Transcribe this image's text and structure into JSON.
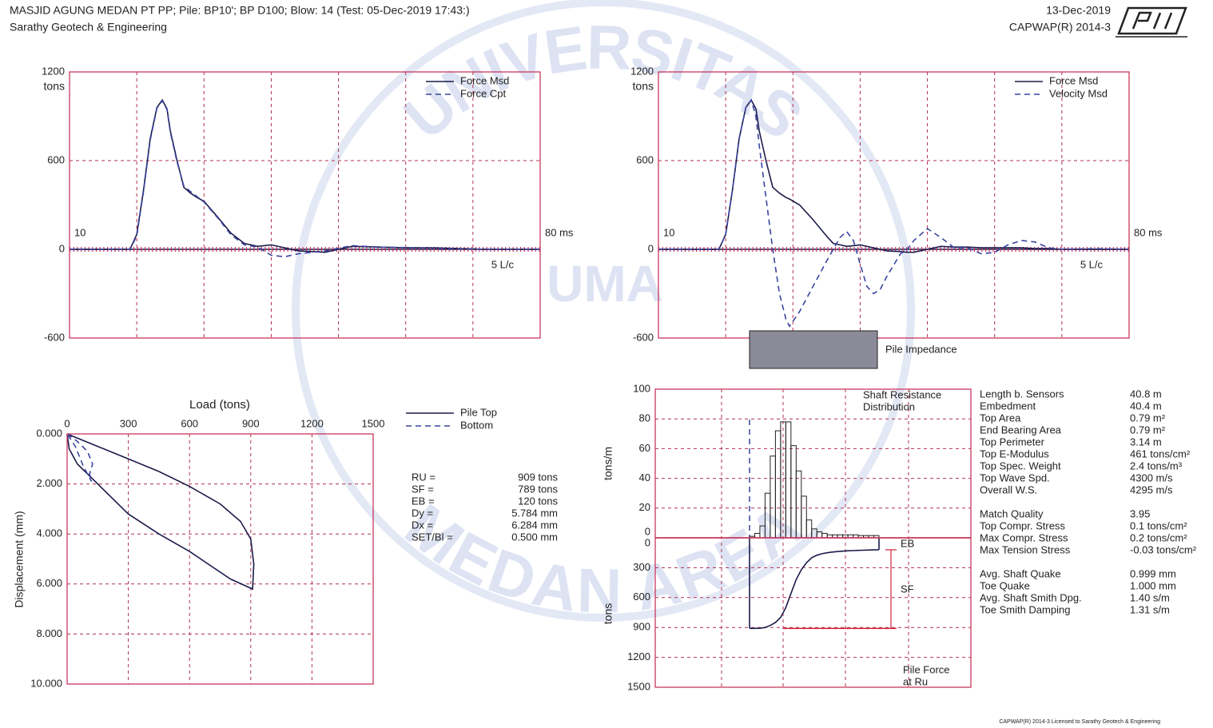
{
  "header": {
    "title": "MASJID AGUNG MEDAN PT PP; Pile: BP10'; BP D100; Blow: 14 (Test: 05-Dec-2019 17:43:)",
    "company": "Sarathy Geotech & Engineering",
    "date": "13-Dec-2019",
    "software": "CAPWAP(R) 2014-3"
  },
  "watermark": {
    "top": "UNIVERSITAS",
    "bottom": "MEDAN AREA",
    "center": "UMA"
  },
  "chart_data": [
    {
      "type": "line",
      "ylabel": "tons",
      "annotation": "5 L/c",
      "legend": "top-right",
      "x": [
        10,
        19,
        20,
        21,
        22,
        23,
        23.8,
        24.5,
        25,
        26,
        27,
        28,
        29,
        30,
        32,
        34,
        36,
        38,
        40,
        42,
        44,
        48,
        52,
        56,
        60,
        64,
        68,
        72,
        80
      ],
      "series": [
        {
          "name": "Force Msd",
          "color": "#1b1b4b",
          "dash": false,
          "values": [
            0,
            0,
            100,
            400,
            750,
            960,
            1010,
            950,
            800,
            600,
            420,
            380,
            350,
            325,
            220,
            110,
            40,
            20,
            30,
            10,
            -10,
            -20,
            20,
            15,
            10,
            10,
            5,
            0,
            0
          ]
        },
        {
          "name": "Force Cpt",
          "color": "#3a44a0",
          "dash": true,
          "values": [
            0,
            0,
            90,
            390,
            740,
            955,
            1005,
            945,
            790,
            590,
            430,
            390,
            355,
            320,
            215,
            100,
            30,
            15,
            -40,
            -50,
            -30,
            -10,
            25,
            15,
            12,
            8,
            3,
            0,
            0
          ]
        }
      ],
      "xlim": [
        10,
        80
      ],
      "xticks": [
        10,
        {
          "value": 80,
          "label": "80 ms"
        }
      ],
      "xgrid": [
        20,
        30,
        40,
        50,
        60,
        70
      ],
      "ylim": [
        -600,
        1200
      ],
      "yticks": [
        -600,
        0,
        600,
        1200
      ],
      "grid": true
    },
    {
      "type": "line",
      "ylabel": "tons",
      "annotation": "5 L/c",
      "legend": "top-right",
      "x": [
        10,
        19,
        20,
        21,
        22,
        23,
        23.8,
        24.5,
        25,
        26,
        27,
        28,
        29,
        29.5,
        31,
        33,
        35,
        36,
        37,
        38,
        39,
        40,
        41,
        42,
        43,
        44,
        46,
        47,
        48,
        50,
        52,
        54,
        56,
        58,
        60,
        62,
        64,
        66,
        68,
        70,
        75,
        80
      ],
      "series": [
        {
          "name": "Force Msd",
          "color": "#1b1b4b",
          "dash": false,
          "values": [
            0,
            0,
            100,
            400,
            750,
            960,
            1010,
            950,
            800,
            600,
            420,
            380,
            350,
            340,
            300,
            200,
            90,
            40,
            30,
            20,
            25,
            30,
            20,
            10,
            0,
            -10,
            -15,
            -20,
            -20,
            0,
            20,
            15,
            15,
            10,
            10,
            10,
            10,
            5,
            5,
            0,
            0,
            0
          ]
        },
        {
          "name": "Velocity Msd",
          "color": "#3a44a0",
          "dash": true,
          "values": [
            0,
            0,
            100,
            400,
            750,
            960,
            1010,
            900,
            700,
            350,
            0,
            -300,
            -480,
            -520,
            -420,
            -250,
            -80,
            0,
            80,
            120,
            60,
            -100,
            -250,
            -300,
            -270,
            -180,
            -30,
            0,
            60,
            140,
            80,
            10,
            10,
            -30,
            -20,
            30,
            60,
            50,
            10,
            0,
            5,
            0
          ]
        }
      ],
      "xlim": [
        10,
        80
      ],
      "xticks": [
        10,
        {
          "value": 80,
          "label": "80 ms"
        }
      ],
      "xgrid": [
        20,
        30,
        40,
        50,
        60,
        70
      ],
      "ylim": [
        -600,
        1200
      ],
      "yticks": [
        -600,
        0,
        600,
        1200
      ],
      "grid": true,
      "annotation_box": "Pile Impedance"
    },
    {
      "type": "line",
      "xlabel": "Load (tons)",
      "ylabel": "Displacement (mm)",
      "legend": "outside-right",
      "y_inverted": true,
      "series": [
        {
          "name": "Pile Top",
          "color": "#1b1b4b",
          "dash": false,
          "x": [
            0,
            150,
            300,
            450,
            600,
            750,
            850,
            900,
            915,
            909,
            800,
            600,
            450,
            300,
            150,
            50,
            10,
            0
          ],
          "values": [
            0,
            0.5,
            1.0,
            1.5,
            2.1,
            2.8,
            3.5,
            4.2,
            5.2,
            6.2,
            5.8,
            4.7,
            4.0,
            3.2,
            2.0,
            1.2,
            0.6,
            0
          ]
        },
        {
          "name": "Bottom",
          "color": "#3a44a0",
          "dash": true,
          "x": [
            0,
            50,
            100,
            125,
            110,
            120,
            80,
            40,
            0
          ],
          "values": [
            0,
            0.3,
            0.7,
            1.2,
            1.6,
            1.9,
            1.3,
            0.5,
            0
          ]
        }
      ],
      "xlim": [
        0,
        1500
      ],
      "xticks": [
        0,
        300,
        600,
        900,
        1200,
        1500
      ],
      "ylim": [
        0,
        10
      ],
      "yticks": [
        {
          "value": 0,
          "label": "0.000"
        },
        {
          "value": 2,
          "label": "2.000"
        },
        {
          "value": 4,
          "label": "4.000"
        },
        {
          "value": 6,
          "label": "6.000"
        },
        {
          "value": 8,
          "label": "8.000"
        },
        {
          "value": 10,
          "label": "10.000"
        }
      ],
      "grid": true
    },
    {
      "type": "bar",
      "ylabel": "tons/m",
      "annotation": [
        "Shaft Resistance",
        "Distribution"
      ],
      "color": "#222222",
      "values": [
        1,
        3,
        8,
        30,
        55,
        72,
        78,
        78,
        62,
        45,
        28,
        12,
        6,
        4,
        3,
        2,
        2,
        2,
        2,
        2,
        2,
        1.5,
        1.5,
        1.5,
        1.5
      ],
      "ylim": [
        0,
        100
      ],
      "yticks": [
        0,
        20,
        40,
        60,
        80,
        100
      ],
      "grid": true
    },
    {
      "type": "line",
      "ylabel": "tons",
      "annotation": [
        "Pile Force",
        "at Ru"
      ],
      "color": "#1b1b4b",
      "y_inverted": true,
      "values": [
        909,
        909,
        908,
        900,
        880,
        850,
        800,
        700,
        560,
        420,
        320,
        250,
        200,
        175,
        160,
        150,
        143,
        138,
        134,
        130,
        128,
        126,
        124,
        123,
        121,
        120
      ],
      "labels": {
        "eb": "EB",
        "sf": "SF"
      },
      "ylim": [
        0,
        1500
      ],
      "yticks": [
        0,
        300,
        600,
        900,
        1200,
        1500
      ],
      "grid": true
    }
  ],
  "results": [
    {
      "label": "RU =",
      "value": "909 tons"
    },
    {
      "label": "SF =",
      "value": "789 tons"
    },
    {
      "label": "EB =",
      "value": "120 tons"
    },
    {
      "label": "Dy =",
      "value": "5.784 mm"
    },
    {
      "label": "Dx =",
      "value": "6.284 mm"
    },
    {
      "label": "SET/Bl =",
      "value": "0.500 mm"
    }
  ],
  "properties": [
    [
      {
        "label": "Length b. Sensors",
        "value": "40.8 m"
      },
      {
        "label": "Embedment",
        "value": "40.4 m"
      },
      {
        "label": "Top Area",
        "value": "0.79 m²"
      },
      {
        "label": "End Bearing Area",
        "value": "0.79 m²"
      },
      {
        "label": "Top Perimeter",
        "value": "3.14 m"
      },
      {
        "label": "Top E-Modulus",
        "value": "461 tons/cm²"
      },
      {
        "label": "Top Spec. Weight",
        "value": "2.4 tons/m³"
      },
      {
        "label": "Top Wave Spd.",
        "value": "4300 m/s"
      },
      {
        "label": "Overall W.S.",
        "value": "4295 m/s"
      }
    ],
    [
      {
        "label": "Match Quality",
        "value": "3.95"
      },
      {
        "label": "Top Compr. Stress",
        "value": "0.1 tons/cm²"
      },
      {
        "label": "Max Compr. Stress",
        "value": "0.2 tons/cm²"
      },
      {
        "label": "Max Tension Stress",
        "value": "-0.03 tons/cm²"
      }
    ],
    [
      {
        "label": "Avg. Shaft Quake",
        "value": "0.999 mm"
      },
      {
        "label": "Toe Quake",
        "value": "1.000 mm"
      },
      {
        "label": "Avg. Shaft Smith Dpg.",
        "value": "1.40 s/m"
      },
      {
        "label": "Toe Smith Damping",
        "value": "1.31 s/m"
      }
    ]
  ],
  "footer": "CAPWAP(R) 2014-3 Licensed to Sarathy Geotech & Engineering"
}
